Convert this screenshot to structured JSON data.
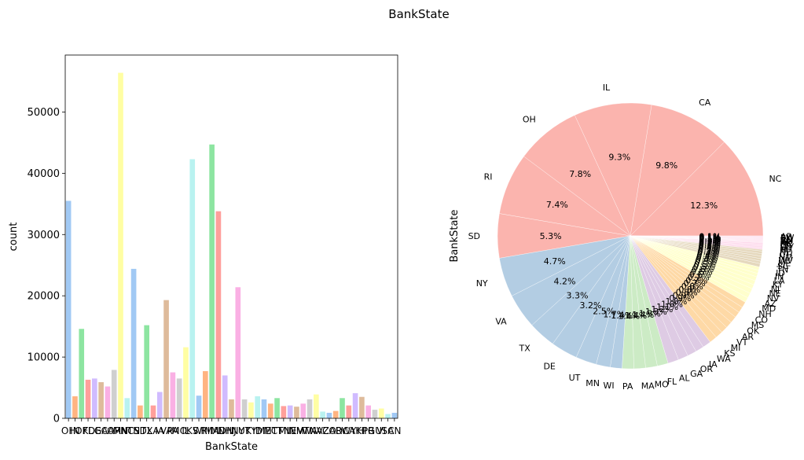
{
  "figure": {
    "title": "BankState"
  },
  "chart_data": [
    {
      "type": "bar",
      "title": "",
      "xlabel": "BankState",
      "ylabel": "count",
      "ylim": [
        0,
        59300
      ],
      "yticks": [
        0,
        10000,
        20000,
        30000,
        40000,
        50000
      ],
      "tick_labels": [
        "0",
        "10000",
        "20000",
        "30000",
        "40000",
        "50000"
      ],
      "categories": [
        "OH",
        "IN",
        "OK",
        "FL",
        "DE",
        "GA",
        "CA",
        "OR",
        "MN",
        "NC",
        "TN",
        "SD",
        "TX",
        "LA",
        "IA",
        "VA",
        "PA",
        "MO",
        "IL",
        "KS",
        "WI",
        "RI",
        "MA",
        "MD",
        "NH",
        "NJ",
        "NY",
        "UT",
        "KY",
        "ID",
        "ME",
        "MT",
        "CT",
        "MI",
        "NE",
        "NM",
        "VT",
        "WA",
        "NV",
        "AZ",
        "CO",
        "AR",
        "DC",
        "WY",
        "AK",
        "HI",
        "PR",
        "GU",
        "VI",
        "SC",
        "AN"
      ],
      "values": [
        35500,
        3600,
        14600,
        6300,
        6500,
        5900,
        5200,
        7900,
        56400,
        3300,
        24400,
        2100,
        15200,
        2100,
        4300,
        19300,
        7500,
        6500,
        11600,
        42300,
        3700,
        7700,
        44700,
        33800,
        7000,
        3100,
        21400,
        3100,
        2600,
        3600,
        3100,
        2400,
        3300,
        2000,
        2100,
        1900,
        2400,
        3100,
        3900,
        1100,
        900,
        1200,
        3300,
        2100,
        4100,
        3500,
        2100,
        1400,
        1600,
        700,
        900
      ],
      "colors": [
        "#a1c9f4",
        "#ffb482",
        "#8de5a1",
        "#ff9f9b",
        "#d0bbff",
        "#debb9b",
        "#fab0e4",
        "#cfcfcf",
        "#fffea3",
        "#b9f2f0"
      ],
      "grid": false,
      "legend": "none"
    },
    {
      "type": "pie",
      "ylabel": "BankState",
      "slices": [
        {
          "label": "NC",
          "pct": 12.3,
          "color": "#fbb4ae",
          "pct_text": "12.3%"
        },
        {
          "label": "CA",
          "pct": 9.8,
          "color": "#fbb4ae",
          "pct_text": "9.8%"
        },
        {
          "label": "IL",
          "pct": 9.3,
          "color": "#fbb4ae",
          "pct_text": "9.3%"
        },
        {
          "label": "OH",
          "pct": 7.8,
          "color": "#fbb4ae",
          "pct_text": "7.8%"
        },
        {
          "label": "RI",
          "pct": 7.4,
          "color": "#fbb4ae",
          "pct_text": "7.4%"
        },
        {
          "label": "SD",
          "pct": 5.3,
          "color": "#fbb4ae",
          "pct_text": "5.3%"
        },
        {
          "label": "NY",
          "pct": 4.7,
          "color": "#b3cde3",
          "pct_text": "4.7%"
        },
        {
          "label": "VA",
          "pct": 4.2,
          "color": "#b3cde3",
          "pct_text": "4.2%"
        },
        {
          "label": "TX",
          "pct": 3.3,
          "color": "#b3cde3",
          "pct_text": "3.3%"
        },
        {
          "label": "DE",
          "pct": 3.2,
          "color": "#b3cde3",
          "pct_text": "3.2%"
        },
        {
          "label": "UT",
          "pct": 2.5,
          "color": "#b3cde3",
          "pct_text": "2.5%"
        },
        {
          "label": "MN",
          "pct": 1.7,
          "color": "#b3cde3",
          "pct_text": "1.7%"
        },
        {
          "label": "WI",
          "pct": 1.4,
          "color": "#b3cde3",
          "pct_text": "1.4%"
        },
        {
          "label": "PA",
          "pct": 1.4,
          "color": "#ccebc5",
          "pct_text": "1.4%"
        },
        {
          "label": "MA",
          "pct": 1.4,
          "color": "#ccebc5",
          "pct_text": "1.4%"
        },
        {
          "label": "MO",
          "pct": 1.4,
          "color": "#ccebc5",
          "pct_text": "1.4%"
        },
        {
          "label": "FL",
          "pct": 1.3,
          "color": "#ccebc5",
          "pct_text": "1.3%"
        },
        {
          "label": "AL",
          "pct": 1.3,
          "color": "#decbe4",
          "pct_text": "1.3%"
        },
        {
          "label": "GA",
          "pct": 1.2,
          "color": "#decbe4",
          "pct_text": "1.2%"
        },
        {
          "label": "OR",
          "pct": 1.1,
          "color": "#decbe4",
          "pct_text": "1.1%"
        },
        {
          "label": "IA",
          "pct": 1.0,
          "color": "#decbe4",
          "pct_text": "1.0%"
        },
        {
          "label": "WA",
          "pct": 1.0,
          "color": "#decbe4",
          "pct_text": "1.0%"
        },
        {
          "label": "KS",
          "pct": 0.9,
          "color": "#fed9a6",
          "pct_text": "0.9%"
        },
        {
          "label": "MI",
          "pct": 0.9,
          "color": "#fed9a6",
          "pct_text": "0.9%"
        },
        {
          "label": "VT",
          "pct": 0.8,
          "color": "#fed9a6",
          "pct_text": "0.8%"
        },
        {
          "label": "AR",
          "pct": 0.8,
          "color": "#fed9a6",
          "pct_text": "0.8%"
        },
        {
          "label": "OK",
          "pct": 0.8,
          "color": "#fed9a6",
          "pct_text": "0.8%"
        },
        {
          "label": "MS",
          "pct": 0.7,
          "color": "#fed9a6",
          "pct_text": "0.7%"
        },
        {
          "label": "CO",
          "pct": 0.7,
          "color": "#fed9a6",
          "pct_text": "0.7%"
        },
        {
          "label": "NH",
          "pct": 0.7,
          "color": "#fed9a6",
          "pct_text": "0.7%"
        },
        {
          "label": "MD",
          "pct": 0.6,
          "color": "#ffffcc",
          "pct_text": "0.6%"
        },
        {
          "label": "AZ",
          "pct": 0.6,
          "color": "#ffffcc",
          "pct_text": "0.6%"
        },
        {
          "label": "NV",
          "pct": 0.6,
          "color": "#ffffcc",
          "pct_text": "0.6%"
        },
        {
          "label": "NE",
          "pct": 0.5,
          "color": "#ffffcc",
          "pct_text": "0.5%"
        },
        {
          "label": "NJ",
          "pct": 0.5,
          "color": "#ffffcc",
          "pct_text": "0.5%"
        },
        {
          "label": "KY",
          "pct": 0.5,
          "color": "#ffffcc",
          "pct_text": "0.5%"
        },
        {
          "label": "LA",
          "pct": 0.4,
          "color": "#ffffcc",
          "pct_text": "0.4%"
        },
        {
          "label": "IN",
          "pct": 0.4,
          "color": "#ffffcc",
          "pct_text": "0.4%"
        },
        {
          "label": "ID",
          "pct": 0.4,
          "color": "#ffffcc",
          "pct_text": "0.4%"
        },
        {
          "label": "TN",
          "pct": 0.4,
          "color": "#e5d8bd",
          "pct_text": "0.4%"
        },
        {
          "label": "SC",
          "pct": 0.3,
          "color": "#e5d8bd",
          "pct_text": "0.3%"
        },
        {
          "label": "ME",
          "pct": 0.3,
          "color": "#e5d8bd",
          "pct_text": "0.3%"
        },
        {
          "label": "WV",
          "pct": 0.3,
          "color": "#e5d8bd",
          "pct_text": "0.3%"
        },
        {
          "label": "NM",
          "pct": 0.3,
          "color": "#e5d8bd",
          "pct_text": "0.3%"
        },
        {
          "label": "CT",
          "pct": 0.3,
          "color": "#e5d8bd",
          "pct_text": "0.3%"
        },
        {
          "label": "ND",
          "pct": 0.2,
          "color": "#e5d8bd",
          "pct_text": "0.2%"
        },
        {
          "label": "HI",
          "pct": 0.2,
          "color": "#fddaec",
          "pct_text": "0.2%"
        },
        {
          "label": "MT",
          "pct": 0.2,
          "color": "#fddaec",
          "pct_text": "0.2%"
        },
        {
          "label": "WY",
          "pct": 0.2,
          "color": "#fddaec",
          "pct_text": "0.2%"
        },
        {
          "label": "DC",
          "pct": 0.2,
          "color": "#fddaec",
          "pct_text": "0.2%"
        },
        {
          "label": "AK",
          "pct": 0.1,
          "color": "#fddaec",
          "pct_text": "0.1%"
        },
        {
          "label": "PR",
          "pct": 0.1,
          "color": "#fddaec",
          "pct_text": "0.1%"
        },
        {
          "label": "GU",
          "pct": 0.1,
          "color": "#fddaec",
          "pct_text": "0.1%"
        },
        {
          "label": "VI",
          "pct": 0.1,
          "color": "#fddaec",
          "pct_text": "0.1%"
        },
        {
          "label": "AN",
          "pct": 0.1,
          "color": "#fddaec",
          "pct_text": "0.1%"
        },
        {
          "label": "EN",
          "pct": 0.1,
          "color": "#fddaec",
          "pct_text": "0.1%"
        },
        {
          "label": "PW",
          "pct": 0.1,
          "color": "#fddaec",
          "pct_text": "0.1%"
        },
        {
          "label": "AP",
          "pct": 0.1,
          "color": "#fddaec",
          "pct_text": "0.1%"
        }
      ]
    }
  ]
}
